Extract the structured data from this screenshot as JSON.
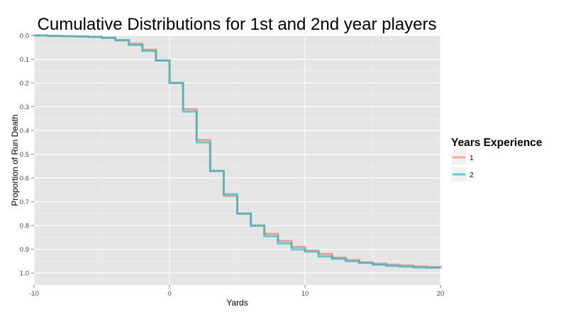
{
  "chart_data": {
    "type": "line",
    "subtype": "step",
    "title": "Cumulative Distributions for 1st and 2nd year players",
    "xlabel": "Yards",
    "ylabel": "Proportion of Run Death",
    "xlim": [
      -10,
      20
    ],
    "ylim": [
      0.0,
      1.05
    ],
    "y_reversed": true,
    "x_ticks": [
      -10,
      0,
      10,
      20
    ],
    "x_tick_labels": [
      "-10",
      "0",
      "10",
      "20"
    ],
    "y_ticks": [
      0.0,
      0.1,
      0.2,
      0.3,
      0.4,
      0.5,
      0.6,
      0.7,
      0.8,
      0.9,
      1.0
    ],
    "y_tick_labels": [
      "0.0",
      "0.1",
      "0.2",
      "0.3",
      "0.4",
      "0.5",
      "0.6",
      "0.7",
      "0.8",
      "0.9",
      "1.0"
    ],
    "grid": true,
    "panel_background": "#e5e5e5",
    "legend": {
      "title": "Years Experience",
      "placement": "right"
    },
    "series": [
      {
        "name": "1",
        "color": "#f8766d",
        "x": [
          -10,
          -9,
          -8,
          -7,
          -6,
          -5,
          -4,
          -3,
          -2,
          -1,
          0,
          1,
          2,
          3,
          4,
          5,
          6,
          7,
          8,
          9,
          10,
          11,
          12,
          13,
          14,
          15,
          16,
          17,
          18,
          19,
          20
        ],
        "y": [
          0.0,
          0.002,
          0.003,
          0.004,
          0.006,
          0.01,
          0.02,
          0.035,
          0.06,
          0.105,
          0.2,
          0.31,
          0.44,
          0.57,
          0.675,
          0.75,
          0.8,
          0.835,
          0.865,
          0.89,
          0.905,
          0.92,
          0.935,
          0.945,
          0.955,
          0.96,
          0.965,
          0.968,
          0.972,
          0.975,
          0.977
        ]
      },
      {
        "name": "2",
        "color": "#00bfc4",
        "x": [
          -10,
          -9,
          -8,
          -7,
          -6,
          -5,
          -4,
          -3,
          -2,
          -1,
          0,
          1,
          2,
          3,
          4,
          5,
          6,
          7,
          8,
          9,
          10,
          11,
          12,
          13,
          14,
          15,
          16,
          17,
          18,
          19,
          20
        ],
        "y": [
          0.0,
          0.002,
          0.003,
          0.004,
          0.006,
          0.01,
          0.02,
          0.04,
          0.065,
          0.105,
          0.2,
          0.32,
          0.45,
          0.57,
          0.668,
          0.75,
          0.8,
          0.845,
          0.875,
          0.9,
          0.91,
          0.93,
          0.94,
          0.95,
          0.957,
          0.965,
          0.97,
          0.973,
          0.976,
          0.977,
          0.979
        ]
      }
    ]
  }
}
